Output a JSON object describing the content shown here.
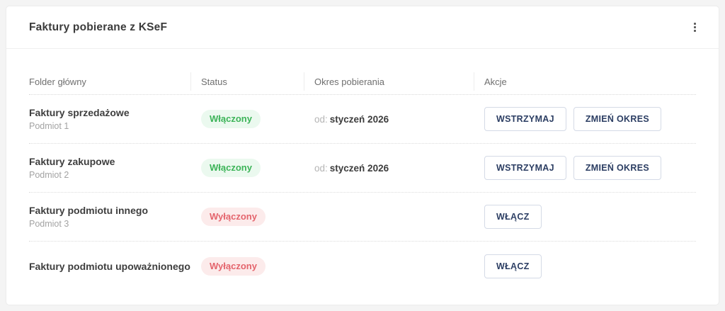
{
  "card": {
    "title": "Faktury pobierane z KSeF",
    "menu_icon": "kebab-menu"
  },
  "table": {
    "columns": [
      "Folder główny",
      "Status",
      "Okres pobierania",
      "Akcje"
    ],
    "rows": [
      {
        "name": "Faktury sprzedażowe",
        "subtitle": "Podmiot 1",
        "status": "Włączony",
        "status_state": "on",
        "period_prefix": "od:",
        "period_value": "styczeń 2026",
        "actions": [
          "WSTRZYMAJ",
          "ZMIEŃ OKRES"
        ]
      },
      {
        "name": "Faktury zakupowe",
        "subtitle": "Podmiot 2",
        "status": "Włączony",
        "status_state": "on",
        "period_prefix": "od:",
        "period_value": "styczeń 2026",
        "actions": [
          "WSTRZYMAJ",
          "ZMIEŃ OKRES"
        ]
      },
      {
        "name": "Faktury podmiotu innego",
        "subtitle": "Podmiot 3",
        "status": "Wyłączony",
        "status_state": "off",
        "actions": [
          "WŁĄCZ"
        ]
      },
      {
        "name": "Faktury podmiotu upoważnionego",
        "status": "Wyłączony",
        "status_state": "off",
        "actions": [
          "WŁĄCZ"
        ]
      }
    ]
  },
  "colors": {
    "status_on_text": "#3cb458",
    "status_on_bg": "#ebf9ef",
    "status_off_text": "#e4646c",
    "status_off_bg": "#fcebeb",
    "button_text": "#2c3e63",
    "button_border": "#d4dae6"
  }
}
